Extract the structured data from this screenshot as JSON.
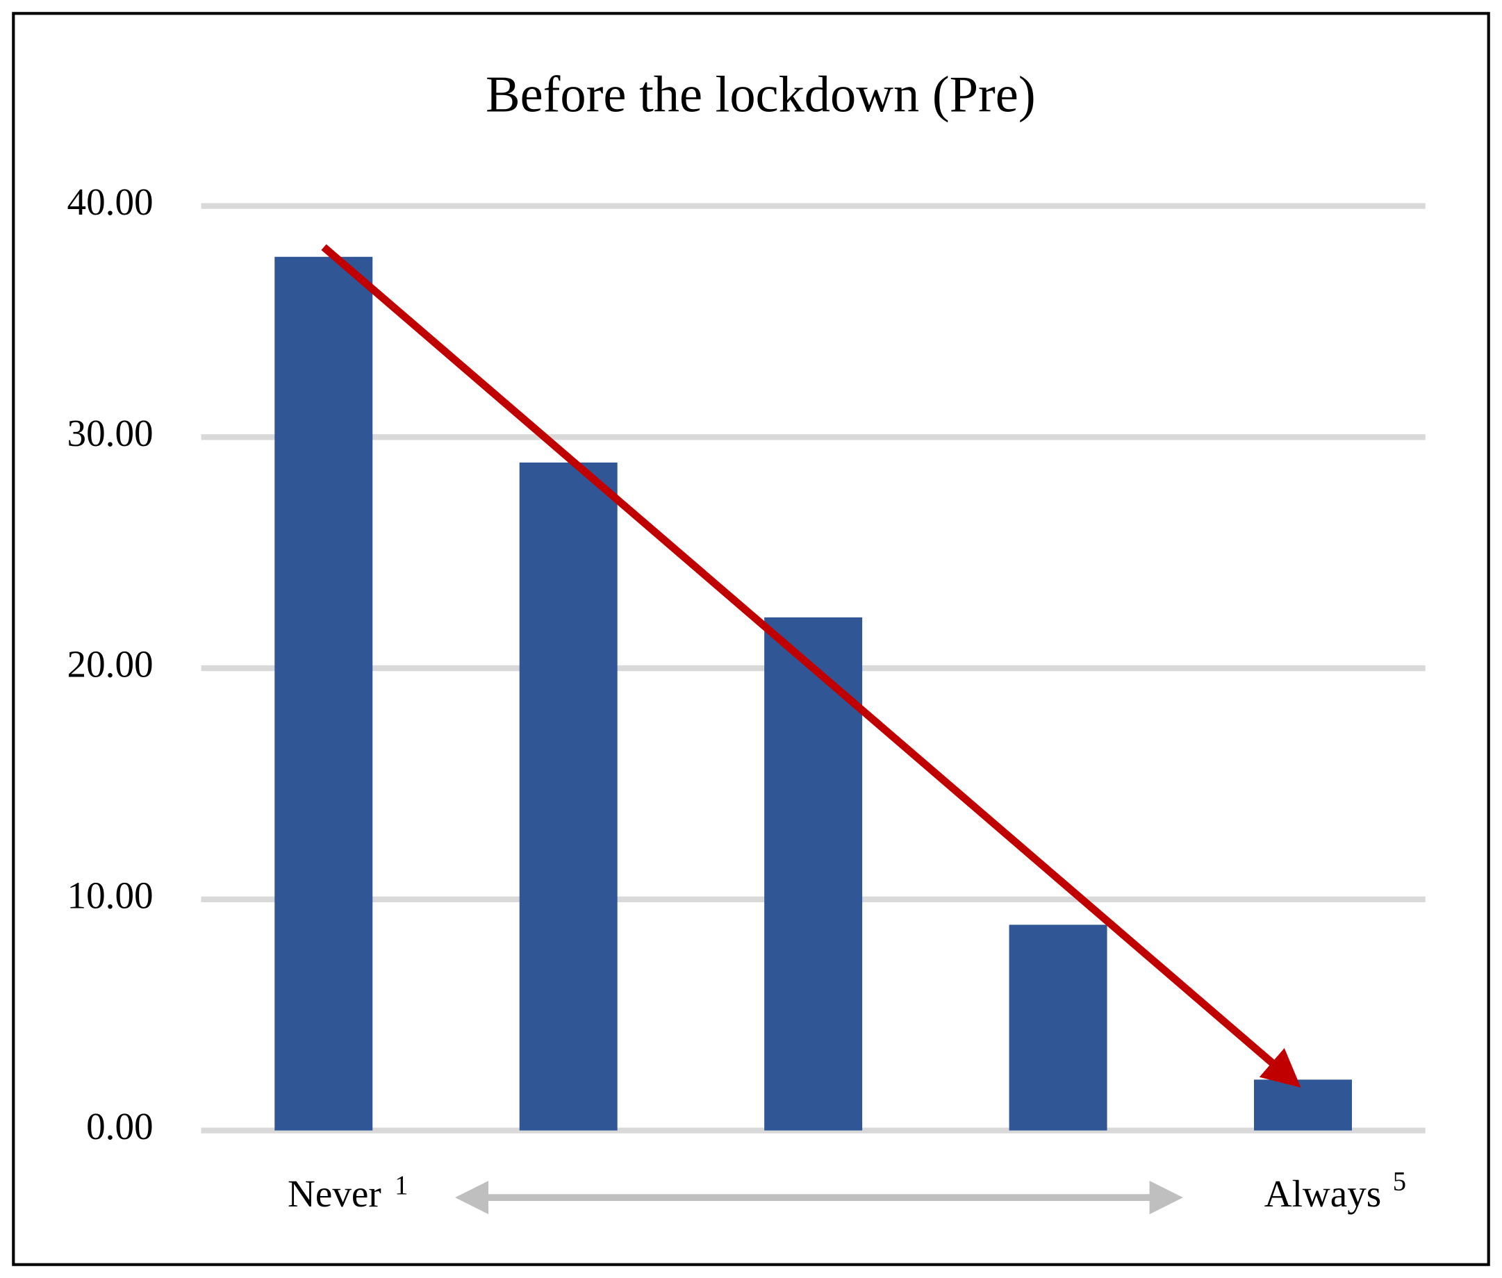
{
  "chart_data": {
    "type": "bar",
    "title": "Before the lockdown (Pre)",
    "categories": [
      null,
      null,
      null,
      null,
      null
    ],
    "values": [
      37.8,
      28.9,
      22.2,
      8.9,
      2.2
    ],
    "color": "#305695",
    "ylim": [
      0,
      40
    ],
    "yticks": [
      {
        "value": 0,
        "label": "0.00"
      },
      {
        "value": 10,
        "label": "10.00"
      },
      {
        "value": 20,
        "label": "20.00"
      },
      {
        "value": 30,
        "label": "30.00"
      },
      {
        "value": 40,
        "label": "40.00"
      }
    ],
    "grid": true,
    "scale_labels": [
      {
        "text": "Never",
        "sup": "1"
      },
      {
        "text": "Always",
        "sup": "5"
      }
    ]
  }
}
